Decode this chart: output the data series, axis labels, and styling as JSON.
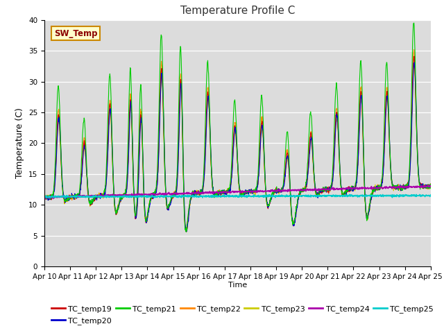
{
  "title": "Temperature Profile C",
  "xlabel": "Time",
  "ylabel": "Temperature (C)",
  "ylim": [
    0,
    40
  ],
  "yticks": [
    0,
    5,
    10,
    15,
    20,
    25,
    30,
    35,
    40
  ],
  "bg_color": "#dcdcdc",
  "fig_color": "#ffffff",
  "annotation_text": "SW_Temp",
  "annotation_box_color": "#ffffcc",
  "annotation_box_edge": "#cc8800",
  "annotation_text_color": "#8b0000",
  "series_colors": {
    "TC_temp19": "#cc0000",
    "TC_temp20": "#0000cc",
    "TC_temp21": "#00cc00",
    "TC_temp22": "#ff8800",
    "TC_temp23": "#cccc00",
    "TC_temp24": "#aa00aa",
    "TC_temp25": "#00cccc"
  },
  "x_tick_labels": [
    "Apr 10",
    "Apr 11",
    "Apr 12",
    "Apr 13",
    "Apr 14",
    "Apr 15",
    "Apr 16",
    "Apr 17",
    "Apr 18",
    "Apr 19",
    "Apr 20",
    "Apr 21",
    "Apr 22",
    "Apr 23",
    "Apr 24",
    "Apr 25"
  ]
}
